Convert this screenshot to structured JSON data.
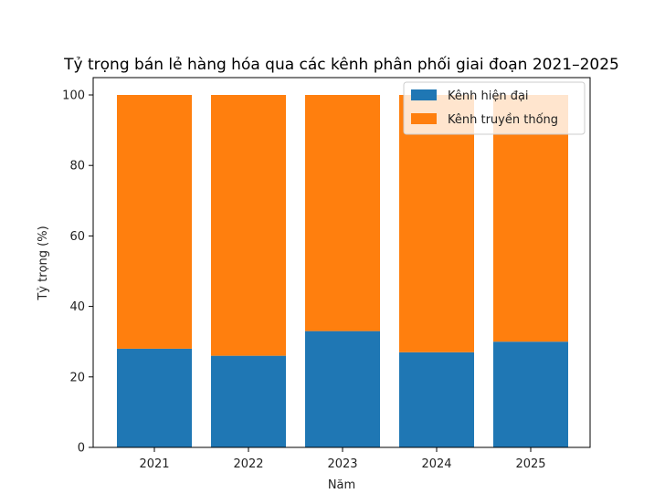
{
  "chart_data": {
    "type": "bar",
    "stacked": true,
    "title": "Tỷ trọng bán lẻ hàng hóa qua các kênh phân phối giai đoạn 2021–2025",
    "xlabel": "Năm",
    "ylabel": "Tỷ trọng (%)",
    "categories": [
      "2021",
      "2022",
      "2023",
      "2024",
      "2025"
    ],
    "ylim": [
      0,
      100
    ],
    "yticks": [
      "0",
      "20",
      "40",
      "60",
      "80",
      "100"
    ],
    "series": [
      {
        "name": "Kênh hiện đại",
        "color": "#1f77b4",
        "values": [
          28,
          26,
          33,
          27,
          30
        ]
      },
      {
        "name": "Kênh truyền thống",
        "color": "#ff7f0e",
        "values": [
          72,
          74,
          67,
          73,
          70
        ]
      }
    ],
    "legend_position": "top-right",
    "grid": false
  }
}
